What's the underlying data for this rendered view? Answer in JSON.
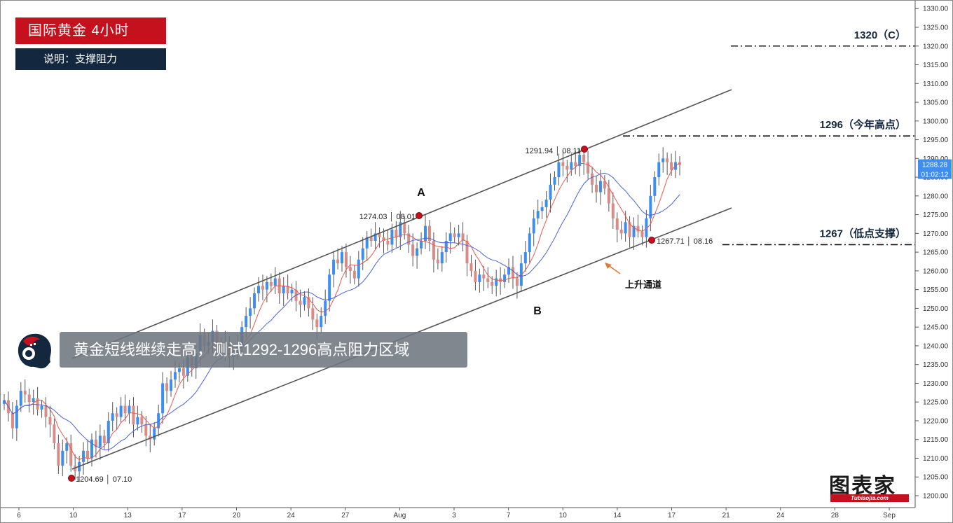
{
  "header": {
    "title": "国际黄金  4小时",
    "subtitle": "说明：支撑阻力"
  },
  "banner": {
    "text": "黄金短线继续走高，测试1292-1296高点阻力区域"
  },
  "logo": {
    "text": "图表家",
    "sub": "Tubiaojia.com"
  },
  "levels": [
    {
      "price": 1320,
      "label": "1320（C）"
    },
    {
      "price": 1296,
      "label": "1296（今年高点）"
    },
    {
      "price": 1267,
      "label": "1267（低点支撑）"
    }
  ],
  "annotations": {
    "point_a": "A",
    "point_b": "B",
    "channel_label": "上升通道",
    "marker_low1": "1204.69 │ 07.10",
    "marker_high1": "1274.03 │ 08.01",
    "marker_high2": "1291.94 │ 08.11",
    "marker_low2": "1267.71 │ 08.16"
  },
  "price_tags": {
    "last_price": "1288.28",
    "countdown": "01:02:12"
  },
  "colors": {
    "up": "#3d8ef0",
    "down": "#d98b86",
    "ma_fast": "#e8594f",
    "ma_slow": "#4a63d4",
    "title_bg": "#c5101d",
    "subtitle_bg": "#13273f"
  },
  "chart_data": {
    "type": "candlestick",
    "y_axis": {
      "min": 1200,
      "max": 1330,
      "ticks": [
        "1200.00",
        "1205.00",
        "1210.00",
        "1215.00",
        "1220.00",
        "1225.00",
        "1230.00",
        "1235.00",
        "1240.00",
        "1245.00",
        "1250.00",
        "1255.00",
        "1260.00",
        "1265.00",
        "1270.00",
        "1275.00",
        "1280.00",
        "1285.00",
        "1290.00",
        "1295.00",
        "1300.00",
        "1305.00",
        "1310.00",
        "1315.00",
        "1320.00",
        "1325.00",
        "1330.00"
      ]
    },
    "x_axis": {
      "ticks": [
        "6",
        "10",
        "13",
        "17",
        "20",
        "24",
        "27",
        "Aug",
        "3",
        "7",
        "10",
        "14",
        "17",
        "21",
        "24",
        "28",
        "Sep"
      ]
    },
    "key_points": [
      {
        "date": "07.10",
        "price": 1204.69
      },
      {
        "date": "08.01",
        "price": 1274.03
      },
      {
        "date": "08.11",
        "price": 1291.94
      },
      {
        "date": "08.16",
        "price": 1267.71
      }
    ],
    "closes": [
      1225.5,
      1222.0,
      1218.0,
      1224.0,
      1228.0,
      1227.0,
      1225.0,
      1226.0,
      1223.0,
      1224.0,
      1221.0,
      1219.0,
      1214.0,
      1208.0,
      1212.0,
      1214.0,
      1208.0,
      1206.5,
      1209.0,
      1212.0,
      1210.0,
      1215.0,
      1213.0,
      1216.0,
      1214.0,
      1220.0,
      1222.0,
      1221.0,
      1224.0,
      1222.0,
      1224.0,
      1219.0,
      1221.0,
      1219.0,
      1216.0,
      1215.0,
      1218.0,
      1222.0,
      1230.0,
      1228.0,
      1231.0,
      1233.0,
      1234.0,
      1232.0,
      1237.0,
      1234.0,
      1238.0,
      1243.0,
      1240.0,
      1241.0,
      1244.0,
      1240.0,
      1238.0,
      1241.0,
      1237.0,
      1238.0,
      1240.0,
      1245.0,
      1248.0,
      1250.0,
      1254.0,
      1256.0,
      1255.0,
      1257.0,
      1256.0,
      1258.0,
      1254.0,
      1256.0,
      1254.0,
      1255.0,
      1252.0,
      1251.0,
      1253.0,
      1250.0,
      1247.0,
      1245.0,
      1248.0,
      1252.0,
      1259.0,
      1263.0,
      1262.0,
      1265.0,
      1261.0,
      1260.0,
      1258.0,
      1263.0,
      1266.0,
      1269.0,
      1268.0,
      1270.0,
      1269.0,
      1268.0,
      1267.0,
      1271.0,
      1269.0,
      1273.0,
      1270.0,
      1267.0,
      1264.0,
      1266.0,
      1268.0,
      1272.0,
      1268.0,
      1263.0,
      1262.0,
      1265.0,
      1268.0,
      1270.0,
      1269.0,
      1270.0,
      1268.0,
      1262.0,
      1260.0,
      1257.0,
      1259.0,
      1258.0,
      1257.0,
      1256.0,
      1258.0,
      1257.0,
      1259.0,
      1261.0,
      1258.0,
      1256.0,
      1262.0,
      1265.0,
      1270.0,
      1274.0,
      1276.0,
      1277.0,
      1279.0,
      1283.0,
      1285.0,
      1289.0,
      1288.0,
      1287.0,
      1289.0,
      1288.0,
      1291.0,
      1289.0,
      1286.0,
      1283.0,
      1281.0,
      1284.0,
      1282.0,
      1278.0,
      1274.0,
      1271.0,
      1270.0,
      1273.0,
      1269.0,
      1272.0,
      1270.5,
      1269.0,
      1274.0,
      1280.0,
      1285.0,
      1289.0,
      1290.0,
      1289.0,
      1287.0,
      1289.0,
      1288.28
    ]
  }
}
